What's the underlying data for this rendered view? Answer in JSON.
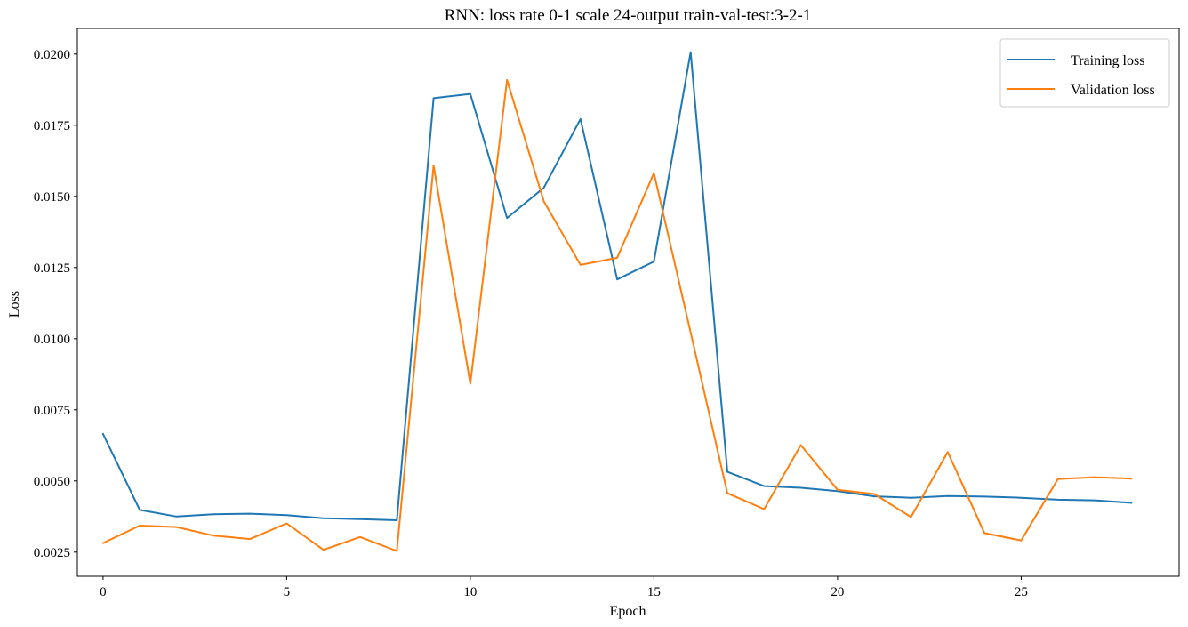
{
  "chart_data": {
    "type": "line",
    "title": "RNN: loss rate 0-1 scale 24-output train-val-test:3-2-1",
    "xlabel": "Epoch",
    "ylabel": "Loss",
    "xlim": [
      -0.7,
      29.3
    ],
    "ylim": [
      0.00165,
      0.0209
    ],
    "xticks": [
      0,
      5,
      10,
      15,
      20,
      25
    ],
    "xtick_labels": [
      "0",
      "5",
      "10",
      "15",
      "20",
      "25"
    ],
    "yticks": [
      0.0025,
      0.005,
      0.0075,
      0.01,
      0.0125,
      0.015,
      0.0175,
      0.02
    ],
    "ytick_labels": [
      "0.0025",
      "0.0050",
      "0.0075",
      "0.0100",
      "0.0125",
      "0.0150",
      "0.0175",
      "0.0200"
    ],
    "grid": false,
    "legend_position": "top-right",
    "x": [
      0,
      1,
      2,
      3,
      4,
      5,
      6,
      7,
      8,
      9,
      10,
      11,
      12,
      13,
      14,
      15,
      16,
      17,
      18,
      19,
      20,
      21,
      22,
      23,
      24,
      25,
      26,
      27,
      28
    ],
    "series": [
      {
        "name": "Training loss",
        "color": "#1f77b4",
        "values": [
          0.00665,
          0.00398,
          0.00375,
          0.00383,
          0.00385,
          0.0038,
          0.00369,
          0.00366,
          0.00362,
          0.01845,
          0.0186,
          0.01424,
          0.0153,
          0.01772,
          0.01208,
          0.01271,
          0.02007,
          0.00532,
          0.00482,
          0.00476,
          0.00464,
          0.00446,
          0.00441,
          0.00447,
          0.00445,
          0.00441,
          0.00434,
          0.00432,
          0.00423
        ]
      },
      {
        "name": "Validation loss",
        "color": "#ff7f0e",
        "values": [
          0.00282,
          0.00343,
          0.00338,
          0.00308,
          0.00296,
          0.00351,
          0.00258,
          0.00303,
          0.00254,
          0.01608,
          0.00842,
          0.01909,
          0.01483,
          0.01259,
          0.01284,
          0.01582,
          0.01022,
          0.00457,
          0.00401,
          0.00626,
          0.00469,
          0.00454,
          0.00373,
          0.00602,
          0.00317,
          0.00291,
          0.00507,
          0.00513,
          0.00508
        ]
      }
    ]
  }
}
